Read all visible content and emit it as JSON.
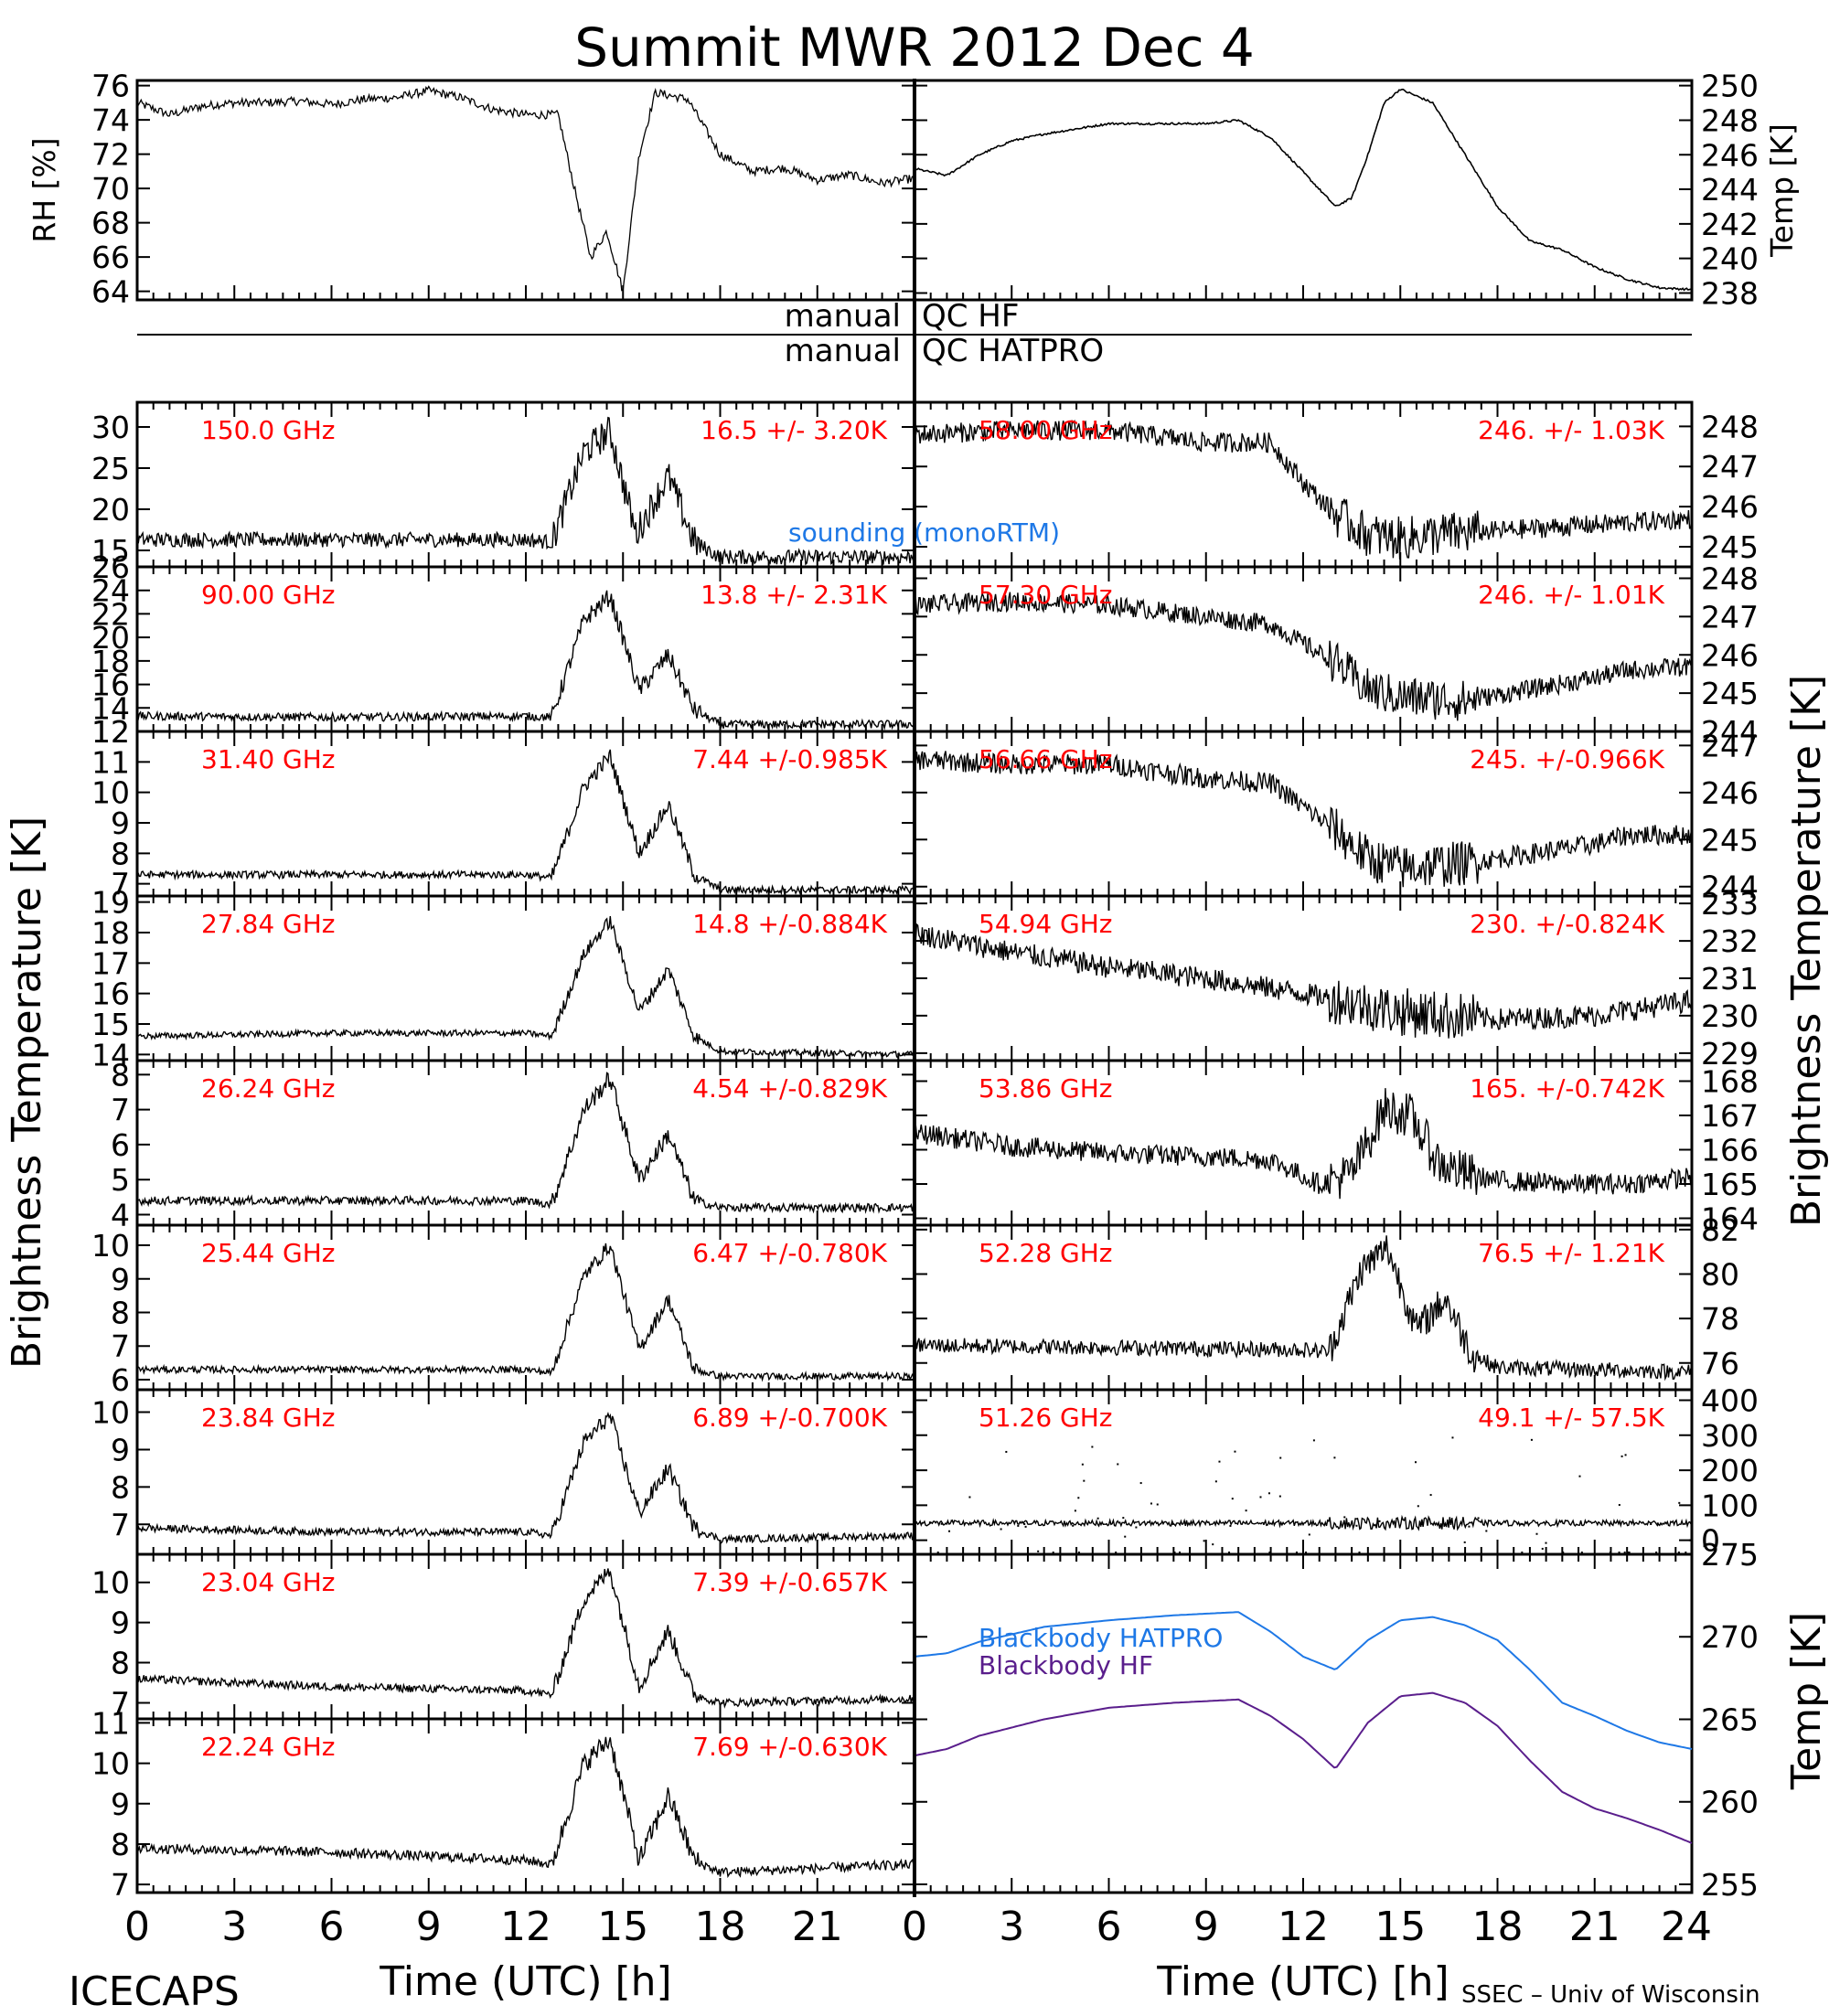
{
  "title": "Summit MWR 2012 Dec  4",
  "qc_labels": {
    "manual_1": "manual",
    "qc_1": "QC HF",
    "manual_2": "manual",
    "qc_2": "QC HATPRO"
  },
  "left_ylabel": "Brightness Temperature [K]",
  "right_ylabel": "Brightness Temperature [K]",
  "bottom_right_ylabel": "Temp [K]",
  "xlabel": "Time (UTC) [h]",
  "footer_left": "ICECAPS",
  "footer_right": "SSEC – Univ of Wisconsin",
  "colors": {
    "text_red": "#ff0000",
    "hatpro_blue": "#1e78e6",
    "hf_purple": "#5a1e8c",
    "data": "#000000"
  },
  "chart_data": [
    {
      "id": "rh",
      "type": "line",
      "ylabel": "RH [%]",
      "ylim": [
        63.5,
        76.3
      ],
      "yticks": [
        64,
        66,
        68,
        70,
        72,
        74,
        76
      ],
      "x": [
        0,
        1,
        2,
        3,
        4,
        5,
        6,
        7,
        8,
        9,
        10,
        11,
        12,
        13,
        13.5,
        14,
        14.5,
        15,
        15.5,
        16,
        17,
        18,
        19,
        20,
        21,
        22,
        23,
        24
      ],
      "values": [
        75,
        74.3,
        74.8,
        75,
        75,
        75.1,
        74.9,
        75.2,
        75.3,
        75.7,
        75.3,
        74.6,
        74.3,
        74.3,
        70,
        66,
        67.5,
        64,
        72,
        75.6,
        75.2,
        72,
        71,
        71.2,
        70.5,
        70.8,
        70.3,
        70.6
      ]
    },
    {
      "id": "temp",
      "type": "line",
      "ylabel": "Temp [K]",
      "ylim": [
        237.6,
        250.3
      ],
      "yticks": [
        238,
        240,
        242,
        244,
        246,
        248,
        250
      ],
      "x": [
        0,
        1,
        2,
        3,
        4,
        5,
        6,
        7,
        8,
        9,
        10,
        11,
        12,
        13,
        13.5,
        14,
        14.5,
        15,
        16,
        17,
        18,
        19,
        20,
        21,
        22,
        23,
        24
      ],
      "values": [
        245.2,
        244.8,
        246,
        246.8,
        247.2,
        247.5,
        247.8,
        247.8,
        247.8,
        247.8,
        248,
        247,
        245,
        243,
        243.5,
        246,
        249,
        249.8,
        249,
        246,
        243,
        241,
        240.5,
        239.5,
        238.8,
        238.3,
        238.2
      ]
    },
    {
      "id": "150",
      "type": "line",
      "label": "150.0 GHz",
      "stat": "16.5 +/-  3.20K",
      "ylim": [
        13,
        33
      ],
      "yticks": [
        15,
        20,
        25,
        30
      ],
      "noise": 0.9,
      "x": [
        0,
        6,
        12,
        12.8,
        13.8,
        14.6,
        15.4,
        16.4,
        17.2,
        18,
        24
      ],
      "values": [
        16.3,
        16.3,
        16.3,
        16,
        27,
        29.5,
        17,
        24,
        16,
        14.2,
        14.2
      ]
    },
    {
      "id": "90",
      "type": "line",
      "label": "90.00 GHz",
      "stat": "13.8 +/-  2.31K",
      "ylim": [
        12,
        26
      ],
      "yticks": [
        12,
        14,
        16,
        18,
        20,
        22,
        24,
        26
      ],
      "noise": 0.35,
      "x": [
        0,
        6,
        12,
        12.8,
        13.8,
        14.6,
        15.5,
        16.4,
        17.2,
        18,
        24
      ],
      "values": [
        13.3,
        13.2,
        13.3,
        13.2,
        21.5,
        23.5,
        15.5,
        18.5,
        13.8,
        12.6,
        12.6
      ]
    },
    {
      "id": "31.4",
      "type": "line",
      "label": "31.40 GHz",
      "stat": "7.44 +/-0.985K",
      "ylim": [
        6.6,
        12
      ],
      "yticks": [
        7,
        8,
        9,
        10,
        11,
        12
      ],
      "noise": 0.12,
      "x": [
        0,
        6,
        12,
        12.8,
        13.8,
        14.6,
        15.5,
        16.4,
        17.2,
        18,
        24
      ],
      "values": [
        7.3,
        7.3,
        7.3,
        7.2,
        10.2,
        11.2,
        8,
        9.6,
        7.3,
        6.8,
        6.8
      ]
    },
    {
      "id": "27.84",
      "type": "line",
      "label": "27.84 GHz",
      "stat": "14.8 +/-0.884K",
      "ylim": [
        13.8,
        19.2
      ],
      "yticks": [
        14,
        15,
        16,
        17,
        18,
        19
      ],
      "noise": 0.1,
      "x": [
        0,
        6,
        12,
        12.8,
        13.8,
        14.6,
        15.5,
        16.4,
        17.2,
        18,
        24
      ],
      "values": [
        14.6,
        14.7,
        14.7,
        14.6,
        17.3,
        18.4,
        15.4,
        16.8,
        14.6,
        14.1,
        14
      ]
    },
    {
      "id": "26.24",
      "type": "line",
      "label": "26.24 GHz",
      "stat": "4.54 +/-0.829K",
      "ylim": [
        3.7,
        8.4
      ],
      "yticks": [
        4,
        5,
        6,
        7,
        8
      ],
      "noise": 0.12,
      "x": [
        0,
        6,
        12,
        12.8,
        13.8,
        14.6,
        15.5,
        16.4,
        17.2,
        18,
        24
      ],
      "values": [
        4.4,
        4.4,
        4.4,
        4.3,
        7,
        7.9,
        5,
        6.3,
        4.4,
        4.2,
        4.2
      ]
    },
    {
      "id": "25.44",
      "type": "line",
      "label": "25.44 GHz",
      "stat": "6.47 +/-0.780K",
      "ylim": [
        5.7,
        10.6
      ],
      "yticks": [
        6,
        7,
        8,
        9,
        10
      ],
      "noise": 0.1,
      "x": [
        0,
        6,
        12,
        12.8,
        13.8,
        14.6,
        15.5,
        16.4,
        17.2,
        18,
        24
      ],
      "values": [
        6.3,
        6.3,
        6.3,
        6.2,
        9.1,
        10,
        6.9,
        8.4,
        6.3,
        6.1,
        6.1
      ]
    },
    {
      "id": "23.84",
      "type": "line",
      "label": "23.84 GHz",
      "stat": "6.89 +/-0.700K",
      "ylim": [
        6.2,
        10.6
      ],
      "yticks": [
        7,
        8,
        9,
        10
      ],
      "noise": 0.1,
      "x": [
        0,
        6,
        12,
        12.8,
        13.8,
        14.6,
        15.5,
        16.4,
        17.2,
        18,
        24
      ],
      "values": [
        6.9,
        6.8,
        6.8,
        6.7,
        9.2,
        9.9,
        7.3,
        8.5,
        6.9,
        6.6,
        6.7
      ]
    },
    {
      "id": "23.04",
      "type": "line",
      "label": "23.04 GHz",
      "stat": "7.39 +/-0.657K",
      "ylim": [
        6.6,
        10.7
      ],
      "yticks": [
        7,
        8,
        9,
        10
      ],
      "noise": 0.1,
      "x": [
        0,
        6,
        12,
        12.8,
        13.8,
        14.6,
        15.5,
        16.4,
        17.2,
        18,
        24
      ],
      "values": [
        7.6,
        7.4,
        7.3,
        7.2,
        9.6,
        10.3,
        7.4,
        8.8,
        7.2,
        7,
        7.1
      ]
    },
    {
      "id": "22.24",
      "type": "line",
      "label": "22.24 GHz",
      "stat": "7.69 +/-0.630K",
      "ylim": [
        6.8,
        11.1
      ],
      "yticks": [
        7,
        8,
        9,
        10,
        11
      ],
      "noise": 0.12,
      "x": [
        0,
        6,
        12,
        12.8,
        13.8,
        14.6,
        15.5,
        16.4,
        17.2,
        18,
        24
      ],
      "values": [
        7.9,
        7.8,
        7.6,
        7.5,
        10,
        10.6,
        7.6,
        9.2,
        7.6,
        7.3,
        7.5
      ]
    },
    {
      "id": "58",
      "type": "line",
      "label": "58.00 GHz",
      "stat": "246. +/- 1.03K",
      "ylim": [
        244.5,
        248.6
      ],
      "yticks": [
        245,
        246,
        247,
        248
      ],
      "noise": 0.25,
      "x": [
        0,
        3,
        6,
        9,
        11,
        12,
        13,
        14,
        15,
        16,
        18,
        20,
        22,
        24
      ],
      "values": [
        247.8,
        247.9,
        247.9,
        247.6,
        247.6,
        246.6,
        245.8,
        245.3,
        245.2,
        245.3,
        245.4,
        245.5,
        245.6,
        245.7
      ]
    },
    {
      "id": "57",
      "type": "line",
      "label": "57.30 GHz",
      "stat": "246. +/- 1.01K",
      "ylim": [
        244,
        248.3
      ],
      "yticks": [
        244,
        245,
        246,
        247,
        248
      ],
      "noise": 0.25,
      "x": [
        0,
        3,
        6,
        9,
        11,
        12,
        13,
        14,
        15,
        17,
        19,
        21,
        22,
        24
      ],
      "values": [
        247.3,
        247.4,
        247.3,
        247,
        246.8,
        246.3,
        245.8,
        245.1,
        244.9,
        244.8,
        245.1,
        245.4,
        245.6,
        245.7
      ]
    },
    {
      "id": "56.66",
      "type": "line",
      "label": "56.66 GHz",
      "stat": "245. +/-0.966K",
      "ylim": [
        243.8,
        247.3
      ],
      "yticks": [
        244,
        245,
        246,
        247
      ],
      "noise": 0.22,
      "x": [
        0,
        3,
        6,
        9,
        11,
        12,
        13,
        14,
        15,
        17,
        19,
        21,
        22,
        24
      ],
      "values": [
        246.7,
        246.6,
        246.6,
        246.3,
        246.2,
        245.7,
        245.2,
        244.6,
        244.4,
        244.5,
        244.7,
        244.9,
        245.1,
        245.1
      ]
    },
    {
      "id": "54.94",
      "type": "line",
      "label": "54.94 GHz",
      "stat": "230. +/-0.824K",
      "ylim": [
        228.8,
        233.2
      ],
      "yticks": [
        229,
        230,
        231,
        232,
        233
      ],
      "noise": 0.3,
      "x": [
        0,
        3,
        6,
        9,
        12,
        15,
        18,
        21,
        24
      ],
      "values": [
        232.2,
        231.7,
        231.3,
        231,
        230.6,
        230.1,
        229.9,
        230,
        230.4
      ]
    },
    {
      "id": "53.86",
      "type": "line",
      "label": "53.86 GHz",
      "stat": "165. +/-0.742K",
      "ylim": [
        163.8,
        168.6
      ],
      "yticks": [
        164,
        165,
        166,
        167,
        168
      ],
      "noise": 0.3,
      "x": [
        0,
        3,
        6,
        9,
        11,
        12.5,
        13.5,
        14.5,
        15.3,
        16.2,
        17,
        18,
        20,
        22,
        24
      ],
      "values": [
        166.5,
        166.1,
        165.9,
        165.8,
        165.7,
        165,
        165.3,
        167.2,
        167,
        165.6,
        165.3,
        165.1,
        165,
        165,
        165.2
      ]
    },
    {
      "id": "52.28",
      "type": "line",
      "label": "52.28 GHz",
      "stat": "76.5 +/- 1.21K",
      "ylim": [
        74.8,
        82.2
      ],
      "yticks": [
        76,
        78,
        80,
        82
      ],
      "noise": 0.35,
      "x": [
        0,
        6,
        12,
        12.8,
        13.8,
        14.6,
        15.5,
        16.4,
        17.2,
        18,
        24
      ],
      "values": [
        76.8,
        76.7,
        76.6,
        76.5,
        80.2,
        81.2,
        77.5,
        78.9,
        76.4,
        75.8,
        75.6
      ]
    },
    {
      "id": "51.26",
      "type": "scatter",
      "label": "51.26 GHz",
      "stat": "49.1 +/- 57.5K",
      "ylim": [
        -40,
        430
      ],
      "yticks": [
        0,
        100,
        200,
        300,
        400
      ],
      "noise": 8,
      "x": [
        0,
        24
      ],
      "values": [
        49,
        49
      ]
    },
    {
      "id": "blackbody",
      "type": "line",
      "ylabel": "Temp [K]",
      "ylim": [
        254.5,
        275
      ],
      "yticks": [
        255,
        260,
        265,
        270,
        275
      ],
      "series": [
        {
          "name": "Blackbody HATPRO",
          "color": "#1e78e6",
          "x": [
            0,
            1,
            2,
            4,
            6,
            8,
            10,
            11,
            12,
            13,
            14,
            15,
            16,
            17,
            18,
            19,
            20,
            21,
            22,
            23,
            24
          ],
          "values": [
            268.8,
            269,
            269.7,
            270.6,
            271,
            271.3,
            271.5,
            270.3,
            268.8,
            268,
            269.8,
            271,
            271.2,
            270.7,
            269.8,
            268,
            266,
            265.2,
            264.3,
            263.6,
            263.2
          ]
        },
        {
          "name": "Blackbody HF",
          "color": "#5a1e8c",
          "x": [
            0,
            1,
            2,
            4,
            6,
            8,
            10,
            11,
            12,
            13,
            14,
            15,
            16,
            17,
            18,
            19,
            20,
            21,
            22,
            23,
            24
          ],
          "values": [
            262.8,
            263.2,
            264,
            265,
            265.7,
            266,
            266.2,
            265.2,
            263.8,
            262,
            264.8,
            266.4,
            266.6,
            266,
            264.6,
            262.5,
            260.6,
            259.6,
            259,
            258.3,
            257.5
          ]
        }
      ]
    }
  ],
  "x_axis": {
    "xlim": [
      0,
      24
    ],
    "ticks_left": [
      "0",
      "3",
      "6",
      "9",
      "12",
      "15",
      "18",
      "21"
    ],
    "ticks_right": [
      "0",
      "3",
      "6",
      "9",
      "12",
      "15",
      "18",
      "21",
      "24"
    ]
  }
}
